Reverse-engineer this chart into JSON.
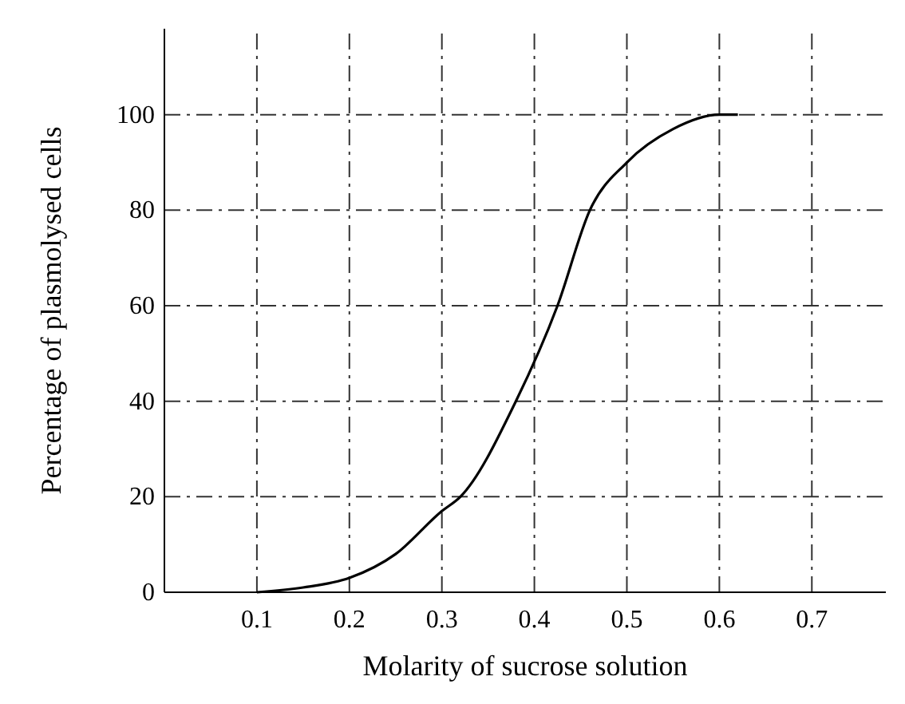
{
  "chart_data": {
    "type": "line",
    "xlabel": "Molarity of sucrose solution",
    "ylabel": "Percentage of plasmolysed cells",
    "x": [
      0.1,
      0.15,
      0.2,
      0.25,
      0.3,
      0.32,
      0.38,
      0.425,
      0.46,
      0.5,
      0.55,
      0.6,
      0.62
    ],
    "series": [
      {
        "color": "#000000",
        "values": [
          0,
          1,
          3,
          8,
          17,
          20,
          40,
          60,
          80,
          90,
          97,
          100,
          100
        ]
      }
    ],
    "xlim": [
      0,
      0.78
    ],
    "xticks": [
      0.1,
      0.2,
      0.3,
      0.4,
      0.5,
      0.6,
      0.7
    ],
    "ylim": [
      0,
      118
    ],
    "yticks": [
      0,
      20,
      40,
      60,
      80,
      100
    ],
    "grid": true,
    "marker": "none",
    "line_style": "solid"
  }
}
